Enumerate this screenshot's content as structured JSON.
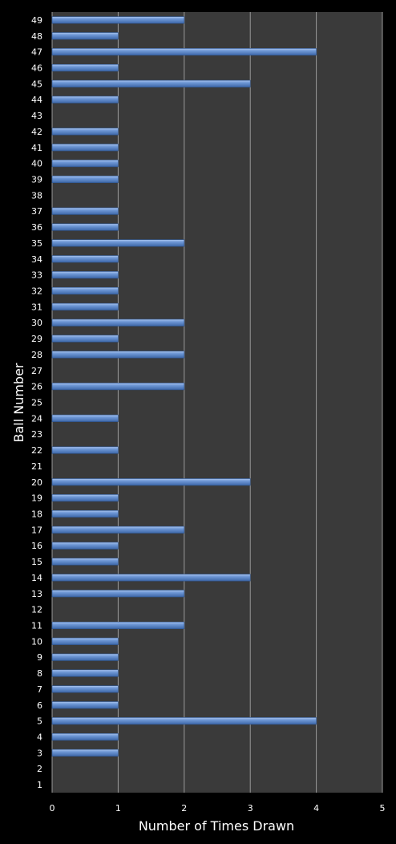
{
  "chart_data": {
    "type": "bar",
    "orientation": "horizontal",
    "xlabel": "Number of Times Drawn",
    "ylabel": "Ball Number",
    "xlim": [
      0,
      5
    ],
    "x_ticks": [
      "0",
      "1",
      "2",
      "3",
      "4",
      "5"
    ],
    "grid": true,
    "legend": "none",
    "categories": [
      "1",
      "2",
      "3",
      "4",
      "5",
      "6",
      "7",
      "8",
      "9",
      "10",
      "11",
      "12",
      "13",
      "14",
      "15",
      "16",
      "17",
      "18",
      "19",
      "20",
      "21",
      "22",
      "23",
      "24",
      "25",
      "26",
      "27",
      "28",
      "29",
      "30",
      "31",
      "32",
      "33",
      "34",
      "35",
      "36",
      "37",
      "38",
      "39",
      "40",
      "41",
      "42",
      "43",
      "44",
      "45",
      "46",
      "47",
      "48",
      "49"
    ],
    "values": [
      0,
      0,
      1,
      1,
      4,
      1,
      1,
      1,
      1,
      1,
      2,
      0,
      2,
      3,
      1,
      1,
      2,
      1,
      1,
      3,
      0,
      1,
      0,
      1,
      0,
      2,
      0,
      2,
      1,
      2,
      1,
      1,
      1,
      1,
      2,
      1,
      1,
      0,
      1,
      1,
      1,
      1,
      0,
      1,
      3,
      1,
      4,
      1,
      2
    ],
    "colors": {
      "background": "#000000",
      "plot_area": "#3a3a3a",
      "bar": "#5a86c8",
      "grid": "#9a9a9a",
      "text": "#ffffff"
    }
  }
}
